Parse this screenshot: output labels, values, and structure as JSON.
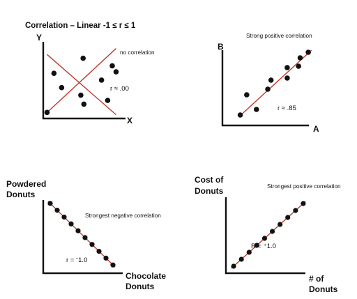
{
  "chart_data": [
    {
      "type": "scatter",
      "title": "Correlation – Linear  -1 ≤ r ≤ 1",
      "subtitle": "",
      "annotation": "no correlation",
      "r_label": "r ≈ .00",
      "xlabel": "X",
      "ylabel": "Y",
      "grid": false,
      "series": [
        {
          "x": [
            0.05,
            0.14,
            0.24,
            0.49,
            0.52,
            0.53,
            0.76,
            0.84,
            0.9,
            0.95
          ],
          "y": [
            0.08,
            0.6,
            0.41,
            0.31,
            0.8,
            0.19,
            0.51,
            0.24,
            0.7,
            0.62
          ]
        }
      ],
      "trendlines": [
        {
          "from": [
            0.05,
            0.08
          ],
          "to": [
            0.95,
            0.93
          ]
        },
        {
          "from": [
            0.05,
            0.85
          ],
          "to": [
            0.95,
            0.05
          ]
        }
      ]
    },
    {
      "type": "scatter",
      "title": "Strong positive correlation",
      "r_label": "r ≈ .85",
      "xlabel": "A",
      "ylabel": "B",
      "grid": false,
      "series": [
        {
          "x": [
            0.11,
            0.15,
            0.21,
            0.28,
            0.3,
            0.4,
            0.4,
            0.47,
            0.48,
            0.53
          ],
          "y": [
            0.15,
            0.44,
            0.23,
            0.52,
            0.65,
            0.83,
            0.68,
            0.85,
            0.97,
            1.05
          ]
        }
      ],
      "trendlines": [
        {
          "from": [
            0.1,
            0.12
          ],
          "to": [
            0.55,
            1.08
          ]
        }
      ]
    },
    {
      "type": "scatter",
      "title": "Strongest negative correlation",
      "r_label": "r = ˉ1.0",
      "xlabel": "Chocolate Donuts",
      "ylabel": "Powdered Donuts",
      "grid": false,
      "series": [
        {
          "x": [
            1,
            2,
            3,
            4,
            5,
            6,
            7,
            8,
            9,
            10
          ],
          "y": [
            10,
            9,
            8,
            7,
            6,
            5,
            4,
            3,
            2,
            1
          ]
        }
      ],
      "trendlines": [
        {
          "from": [
            0.7,
            10.3
          ],
          "to": [
            10.3,
            0.7
          ]
        }
      ]
    },
    {
      "type": "scatter",
      "title": "Strongest positive correlation",
      "r_label": "R = ⁺1.0",
      "xlabel": "# of Donuts",
      "ylabel": "Cost of Donuts",
      "grid": false,
      "series": [
        {
          "x": [
            1,
            2,
            3,
            4,
            5,
            6,
            7,
            8,
            9,
            10
          ],
          "y": [
            1,
            2,
            3,
            4,
            5,
            6,
            7,
            8,
            9,
            10
          ]
        }
      ],
      "trendlines": [
        {
          "from": [
            0.7,
            0.7
          ],
          "to": [
            10.3,
            10.3
          ]
        }
      ]
    }
  ],
  "labels": {
    "xlabel_line1": "Chocolate",
    "xlabel_line2": "Donuts",
    "ylabel_line1": "Powdered",
    "ylabel_line2": "Donuts",
    "xlabel4_line1": "# of",
    "xlabel4_line2": "Donuts",
    "ylabel4_line1": "Cost  of",
    "ylabel4_line2": "Donuts"
  },
  "colors": {
    "points": "#111111",
    "axes": "#111111",
    "trendline": "#c0392b"
  }
}
